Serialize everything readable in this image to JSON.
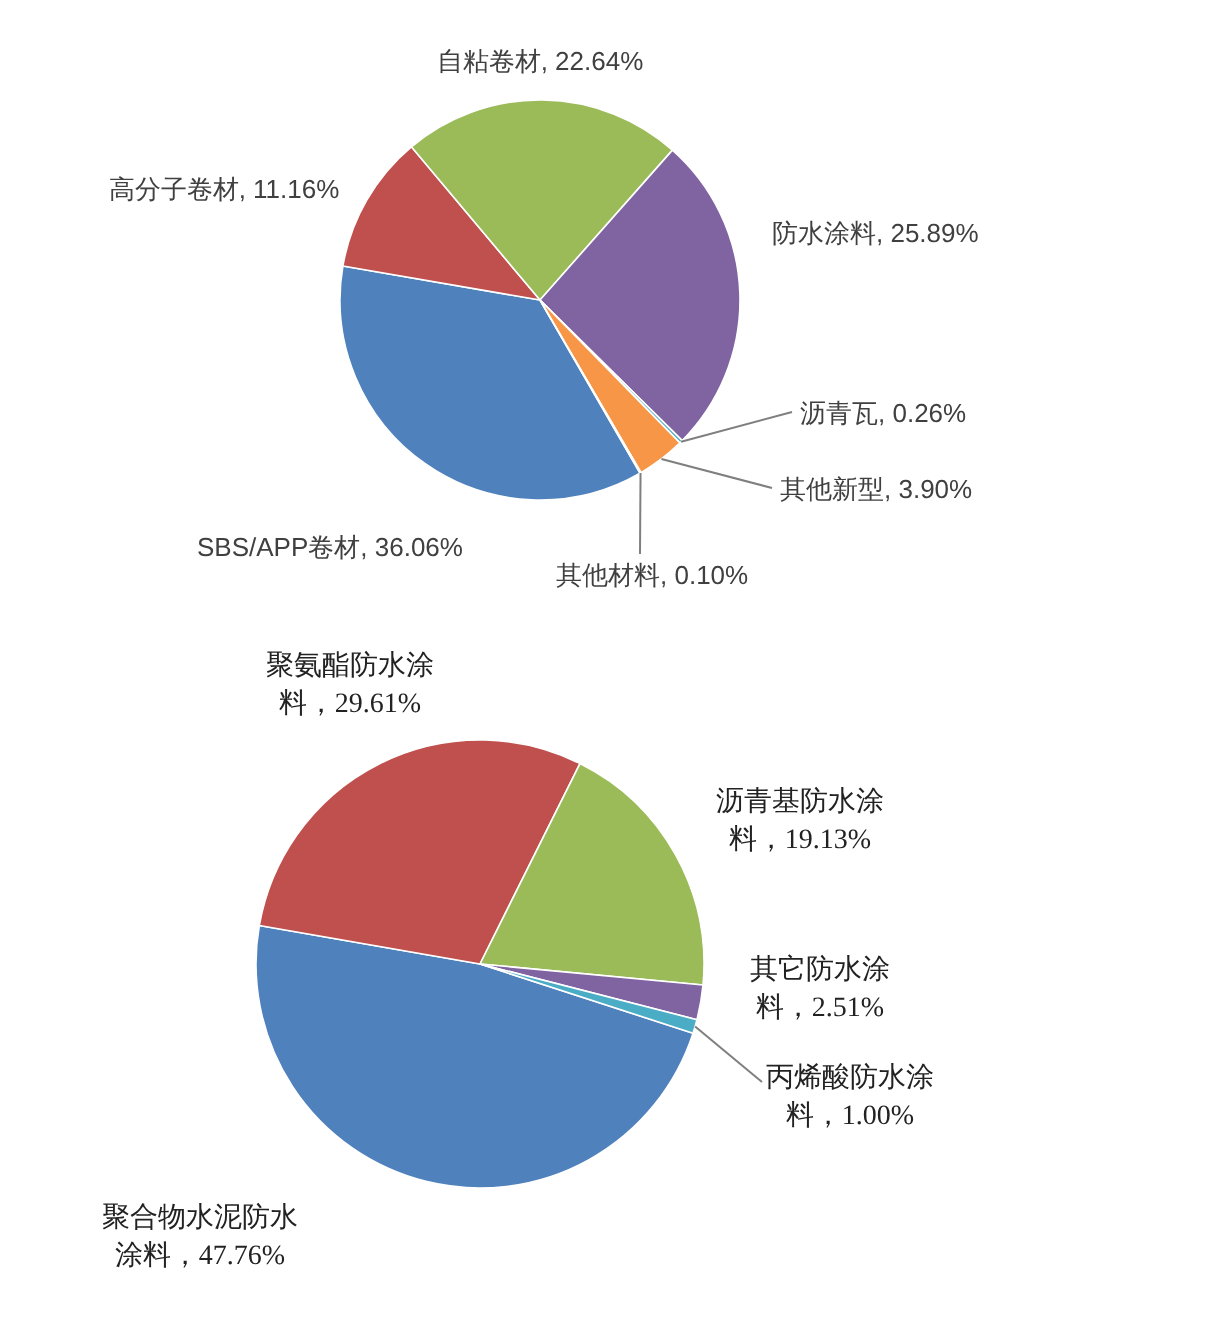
{
  "chart_data": [
    {
      "type": "pie",
      "categories": [
        "SBS/APP卷材",
        "高分子卷材",
        "自粘卷材",
        "防水涂料",
        "沥青瓦",
        "其他新型",
        "其他材料"
      ],
      "values": [
        36.06,
        11.16,
        22.64,
        25.89,
        0.26,
        3.9,
        0.1
      ],
      "value_labels": [
        "36.06%",
        "11.16%",
        "22.64%",
        "25.89%",
        "0.26%",
        "3.90%",
        "0.10%"
      ],
      "colors": [
        "#4f81bd",
        "#c0504d",
        "#9bbb59",
        "#8064a2",
        "#4bacc6",
        "#f79646",
        "#2c4d75"
      ]
    },
    {
      "type": "pie",
      "categories": [
        "聚合物水泥防水涂料",
        "聚氨酯防水涂料",
        "沥青基防水涂料",
        "其它防水涂料",
        "丙烯酸防水涂料"
      ],
      "values": [
        47.76,
        29.61,
        19.13,
        2.51,
        1.0
      ],
      "value_labels": [
        "47.76%",
        "29.61%",
        "19.13%",
        "2.51%",
        "1.00%"
      ],
      "colors": [
        "#4f81bd",
        "#c0504d",
        "#9bbb59",
        "#8064a2",
        "#4bacc6"
      ]
    }
  ]
}
